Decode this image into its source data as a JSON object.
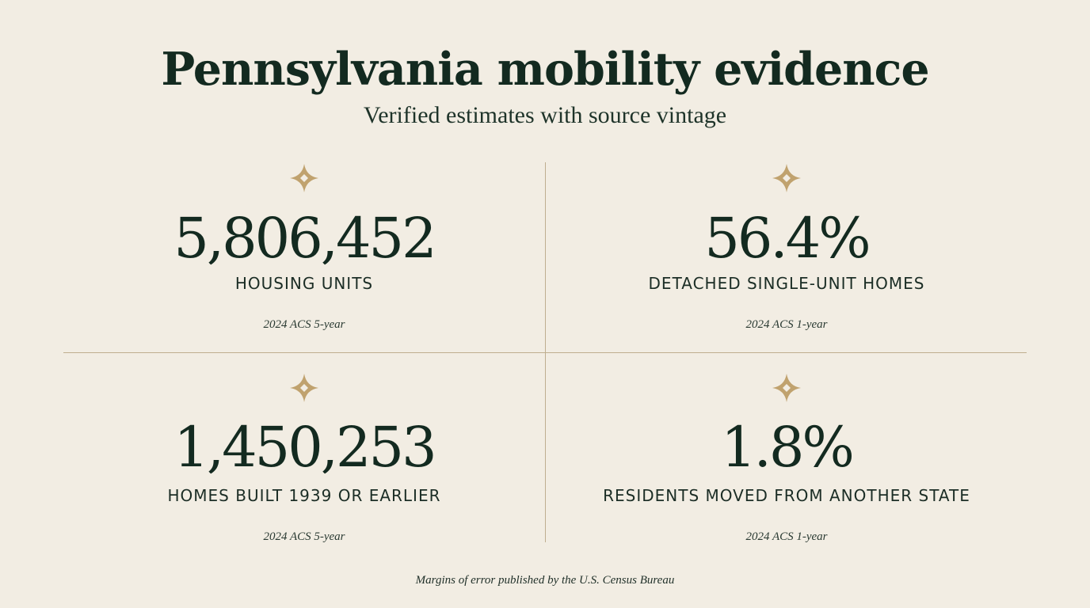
{
  "header": {
    "title": "Pennsylvania mobility evidence",
    "subtitle": "Verified estimates with source vintage"
  },
  "colors": {
    "background": "#f2ede3",
    "text": "#132a20",
    "accent_gold": "#c0a26e",
    "divider": "#bfae8f"
  },
  "stats": [
    {
      "icon": "diamond-ornament-icon",
      "value": "5,806,452",
      "label": "HOUSING UNITS",
      "source": "2024 ACS 5-year"
    },
    {
      "icon": "diamond-ornament-icon",
      "value": "56.4%",
      "label": "DETACHED SINGLE-UNIT HOMES",
      "source": "2024 ACS 1-year"
    },
    {
      "icon": "diamond-ornament-icon",
      "value": "1,450,253",
      "label": "HOMES BUILT 1939 OR EARLIER",
      "source": "2024 ACS 5-year"
    },
    {
      "icon": "diamond-ornament-icon",
      "value": "1.8%",
      "label": "RESIDENTS MOVED FROM ANOTHER STATE",
      "source": "2024 ACS 1-year"
    }
  ],
  "footer": {
    "note": "Margins of error published by the U.S. Census Bureau"
  }
}
